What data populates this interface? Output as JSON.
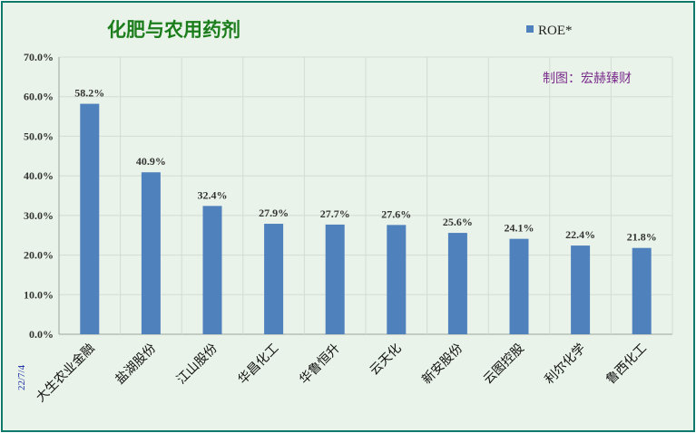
{
  "chart_data": {
    "type": "bar",
    "title": "化肥与农用药剂",
    "annotation": "制图：宏赫臻财",
    "date_label": "22/7/4",
    "categories": [
      "大生农业金融",
      "盐湖股份",
      "江山股份",
      "华昌化工",
      "华鲁恒升",
      "云天化",
      "新安股份",
      "云图控股",
      "利尔化学",
      "鲁西化工"
    ],
    "series": [
      {
        "name": "ROE*",
        "values": [
          58.2,
          40.9,
          32.4,
          27.9,
          27.7,
          27.6,
          25.6,
          24.1,
          22.4,
          21.8
        ],
        "labels": [
          "58.2%",
          "40.9%",
          "32.4%",
          "27.9%",
          "27.7%",
          "27.6%",
          "25.6%",
          "24.1%",
          "22.4%",
          "21.8%"
        ]
      }
    ],
    "yticks": [
      "0.0%",
      "10.0%",
      "20.0%",
      "30.0%",
      "40.0%",
      "50.0%",
      "60.0%",
      "70.0%"
    ],
    "ylim": [
      0,
      70
    ],
    "grid": true,
    "legend_position": "top-right",
    "colors": {
      "bar": "#4f81bd",
      "background": "#e9f3e9",
      "border": "#0d7a6b",
      "title": "#1b7d1b",
      "annotation": "#7a2c8c"
    }
  }
}
